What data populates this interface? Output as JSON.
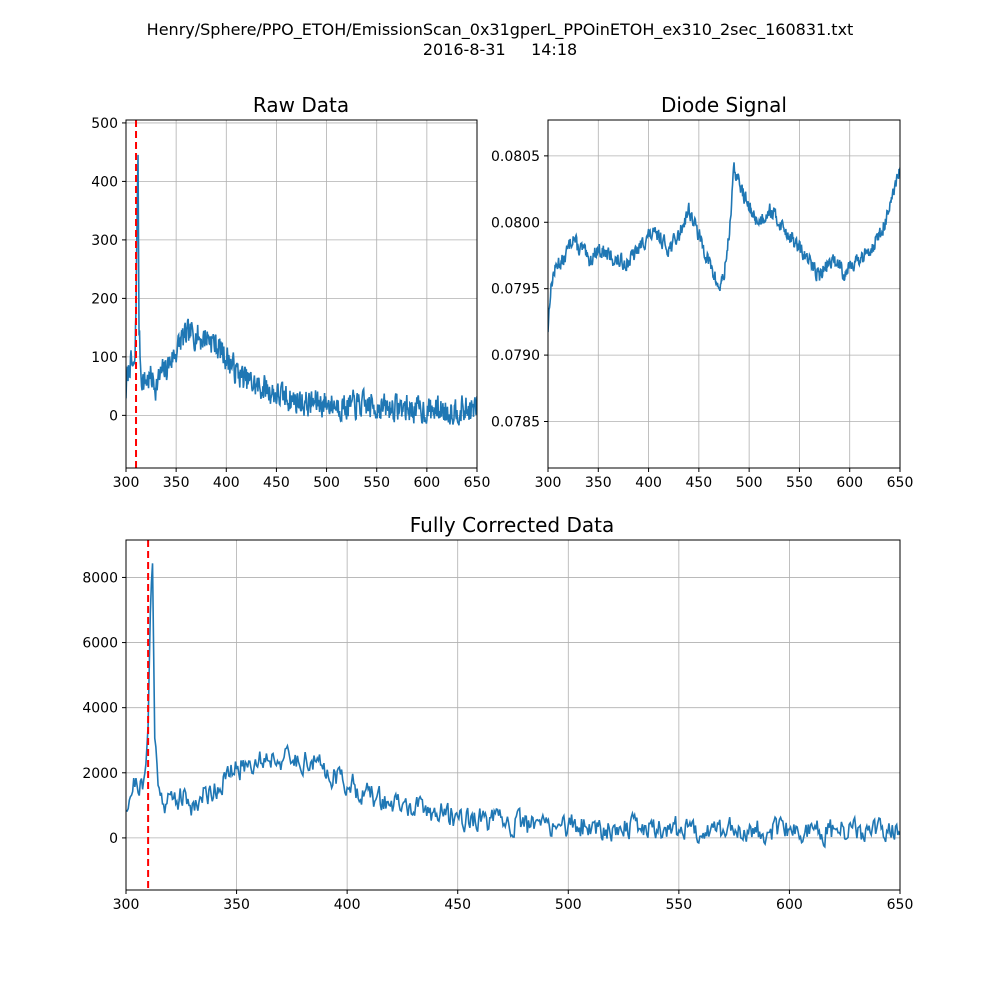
{
  "figure": {
    "title_line1": "Henry/Sphere/PPO_ETOH/EmissionScan_0x31gperL_PPOinETOH_ex310_2sec_160831.txt",
    "title_line2": "2016-8-31     14:18"
  },
  "colors": {
    "line": "#1f77b4",
    "marker": "#ff0000",
    "grid": "#b0b0b0"
  },
  "chart_data": [
    {
      "id": "raw",
      "type": "line",
      "title": "Raw Data",
      "xlim": [
        300,
        650
      ],
      "ylim": [
        -90,
        505
      ],
      "xticks": [
        300,
        350,
        400,
        450,
        500,
        550,
        600,
        650
      ],
      "yticks": [
        0,
        100,
        200,
        300,
        400,
        500
      ],
      "ytick_labels": [
        "0",
        "100",
        "200",
        "300",
        "400",
        "500"
      ],
      "grid": true,
      "marker_x": 310,
      "series": [
        {
          "x": [
            300,
            302,
            304,
            306,
            308,
            309,
            310,
            311,
            312,
            313,
            315,
            318,
            320,
            325,
            330,
            335,
            340,
            345,
            350,
            355,
            360,
            365,
            370,
            375,
            380,
            385,
            390,
            395,
            400,
            410,
            420,
            430,
            440,
            450,
            460,
            470,
            480,
            490,
            500,
            510,
            520,
            530,
            540,
            550,
            560,
            570,
            580,
            590,
            600,
            610,
            620,
            630,
            640,
            650
          ],
          "y": [
            40,
            70,
            90,
            85,
            75,
            100,
            180,
            350,
            430,
            150,
            70,
            55,
            60,
            65,
            50,
            70,
            80,
            95,
            110,
            130,
            135,
            140,
            138,
            130,
            135,
            130,
            120,
            110,
            100,
            75,
            60,
            50,
            45,
            35,
            30,
            25,
            20,
            22,
            20,
            18,
            15,
            18,
            16,
            15,
            12,
            14,
            12,
            10,
            8,
            10,
            8,
            10,
            8,
            12
          ],
          "noise": 32,
          "seed": 7
        }
      ]
    },
    {
      "id": "diode",
      "type": "line",
      "title": "Diode Signal",
      "xlim": [
        300,
        650
      ],
      "ylim": [
        0.07815,
        0.08077
      ],
      "xticks": [
        300,
        350,
        400,
        450,
        500,
        550,
        600,
        650
      ],
      "yticks": [
        0.0785,
        0.079,
        0.0795,
        0.08,
        0.0805
      ],
      "ytick_labels": [
        "0.0785",
        "0.0790",
        "0.0795",
        "0.0800",
        "0.0805"
      ],
      "grid": true,
      "series": [
        {
          "x": [
            300,
            302,
            305,
            310,
            315,
            320,
            325,
            330,
            335,
            340,
            350,
            360,
            370,
            380,
            390,
            400,
            410,
            420,
            430,
            440,
            445,
            450,
            455,
            460,
            465,
            470,
            475,
            480,
            485,
            490,
            495,
            500,
            505,
            510,
            520,
            530,
            540,
            550,
            560,
            570,
            580,
            590,
            595,
            600,
            610,
            620,
            630,
            640,
            650
          ],
          "y": [
            0.0792,
            0.07945,
            0.0796,
            0.0797,
            0.0797,
            0.0798,
            0.0799,
            0.0798,
            0.0798,
            0.0797,
            0.0798,
            0.07975,
            0.0797,
            0.0797,
            0.0798,
            0.0799,
            0.0799,
            0.0798,
            0.0799,
            0.0801,
            0.08,
            0.0799,
            0.0798,
            0.0797,
            0.0796,
            0.0795,
            0.0796,
            0.0799,
            0.0804,
            0.0803,
            0.0802,
            0.0801,
            0.08005,
            0.08,
            0.0801,
            0.08,
            0.0799,
            0.0798,
            0.0797,
            0.0796,
            0.0797,
            0.0797,
            0.0796,
            0.0797,
            0.0797,
            0.0798,
            0.0799,
            0.0801,
            0.0804
          ],
          "noise": 8e-05,
          "seed": 13
        }
      ]
    },
    {
      "id": "corrected",
      "type": "line",
      "title": "Fully Corrected Data",
      "xlim": [
        300,
        650
      ],
      "ylim": [
        -1600,
        9150
      ],
      "xticks": [
        300,
        350,
        400,
        450,
        500,
        550,
        600,
        650
      ],
      "yticks": [
        0,
        2000,
        4000,
        6000,
        8000
      ],
      "ytick_labels": [
        "0",
        "2000",
        "4000",
        "6000",
        "8000"
      ],
      "grid": true,
      "marker_x": 310,
      "series": [
        {
          "x": [
            300,
            302,
            304,
            306,
            308,
            309,
            310,
            311,
            312,
            313,
            315,
            318,
            320,
            325,
            330,
            335,
            340,
            345,
            350,
            355,
            360,
            365,
            370,
            375,
            380,
            385,
            390,
            395,
            400,
            410,
            420,
            430,
            440,
            450,
            460,
            470,
            480,
            490,
            500,
            510,
            520,
            530,
            540,
            550,
            560,
            570,
            580,
            590,
            600,
            610,
            620,
            630,
            640,
            650
          ],
          "y": [
            1000,
            1400,
            1700,
            1650,
            1500,
            2100,
            3800,
            7000,
            8400,
            3000,
            1500,
            1100,
            1200,
            1250,
            1000,
            1300,
            1500,
            1800,
            2100,
            2300,
            2400,
            2500,
            2450,
            2350,
            2400,
            2300,
            2100,
            1900,
            1700,
            1300,
            1050,
            900,
            800,
            650,
            550,
            480,
            400,
            420,
            380,
            350,
            300,
            340,
            310,
            300,
            250,
            280,
            250,
            220,
            200,
            220,
            180,
            200,
            170,
            220
          ],
          "noise": 520,
          "seed": 21
        }
      ]
    }
  ]
}
